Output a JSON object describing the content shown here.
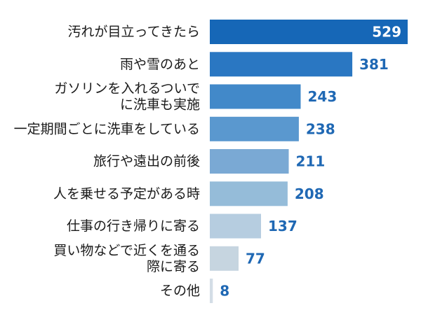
{
  "chart_data": {
    "type": "bar",
    "orientation": "horizontal",
    "categories": [
      [
        "汚れが目立ってきたら"
      ],
      [
        "雨や雪のあと"
      ],
      [
        "ガソリンを入れるついで",
        "に洗車も実施"
      ],
      [
        "一定期間ごとに洗車をしている"
      ],
      [
        "旅行や遠出の前後"
      ],
      [
        "人を乗せる予定がある時"
      ],
      [
        "仕事の行き帰りに寄る"
      ],
      [
        "買い物などで近くを通る",
        "際に寄る"
      ],
      [
        "その他"
      ]
    ],
    "values": [
      529,
      381,
      243,
      238,
      211,
      208,
      137,
      77,
      8
    ],
    "bar_colors": [
      "#1667b7",
      "#2a77c2",
      "#4289c9",
      "#5a98cf",
      "#7aa9d4",
      "#95bcd9",
      "#b6cde0",
      "#c6d5e0",
      "#d3dde6"
    ],
    "value_colors": [
      "#ffffff",
      "#1f68b4",
      "#1f68b4",
      "#1f68b4",
      "#1f68b4",
      "#1f68b4",
      "#1f68b4",
      "#1f68b4",
      "#1f68b4"
    ],
    "value_inside": [
      true,
      false,
      false,
      false,
      false,
      false,
      false,
      false,
      false
    ],
    "xlim": [
      0,
      529
    ],
    "grid": false,
    "legend": "none"
  }
}
